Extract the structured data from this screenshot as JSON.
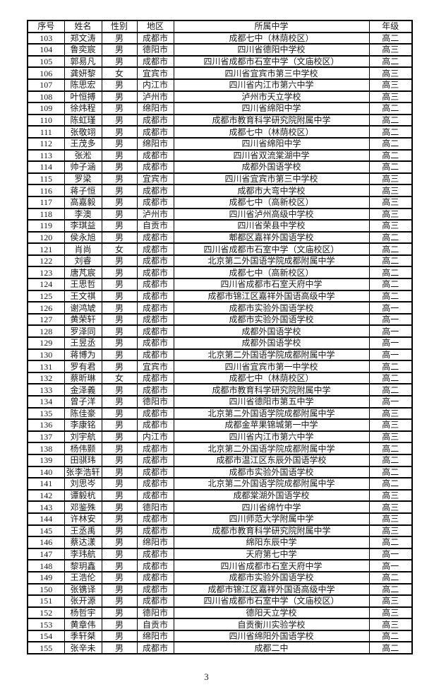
{
  "page": {
    "footer_page_number": "3"
  },
  "table": {
    "headers": [
      "序号",
      "姓名",
      "性别",
      "地区",
      "所属中学",
      "年级"
    ],
    "rows": [
      [
        "103",
        "郑文涛",
        "男",
        "成都市",
        "成都七中（林荫校区）",
        "高二"
      ],
      [
        "104",
        "鲁奕宸",
        "男",
        "德阳市",
        "四川省德阳中学校",
        "高三"
      ],
      [
        "105",
        "郭易凡",
        "男",
        "成都市",
        "四川省成都市石室中学（文庙校区）",
        "高二"
      ],
      [
        "106",
        "龚妍黎",
        "女",
        "宜宾市",
        "四川省宜宾市第三中学校",
        "高三"
      ],
      [
        "107",
        "陈思宏",
        "男",
        "内江市",
        "四川省内江市第六中学",
        "高三"
      ],
      [
        "108",
        "叶恒搏",
        "男",
        "泸州市",
        "泸州市天立学校",
        "高三"
      ],
      [
        "109",
        "徐炜程",
        "男",
        "绵阳市",
        "四川省绵阳中学",
        "高二"
      ],
      [
        "110",
        "陈虹瑾",
        "男",
        "成都市",
        "成都市教育科学研究院附属中学",
        "高二"
      ],
      [
        "111",
        "张敬翊",
        "男",
        "成都市",
        "成都七中（林荫校区）",
        "高二"
      ],
      [
        "112",
        "王茂多",
        "男",
        "绵阳市",
        "四川省绵阳中学",
        "高二"
      ],
      [
        "113",
        "张淞",
        "男",
        "成都市",
        "四川省双流棠湖中学",
        "高二"
      ],
      [
        "114",
        "帅子涵",
        "男",
        "成都市",
        "成都外国语学校",
        "高二"
      ],
      [
        "115",
        "罗梁",
        "男",
        "宜宾市",
        "四川省宜宾市第三中学校",
        "高三"
      ],
      [
        "116",
        "蒋子恒",
        "男",
        "成都市",
        "成都市大弯中学校",
        "高三"
      ],
      [
        "117",
        "高嘉毅",
        "男",
        "成都市",
        "成都七中（高新校区）",
        "高三"
      ],
      [
        "118",
        "李澳",
        "男",
        "泸州市",
        "四川省泸州高级中学校",
        "高三"
      ],
      [
        "119",
        "李琪益",
        "男",
        "自贡市",
        "四川省荣县中学校",
        "高三"
      ],
      [
        "120",
        "侯永旭",
        "男",
        "成都市",
        "郫都区嘉祥外国语学校",
        "高二"
      ],
      [
        "121",
        "肖尚",
        "女",
        "成都市",
        "四川省成都市石室中学（文庙校区）",
        "高二"
      ],
      [
        "122",
        "刘睿",
        "男",
        "成都市",
        "北京第二外国语学院成都附属中学",
        "高二"
      ],
      [
        "123",
        "唐芃宸",
        "男",
        "成都市",
        "成都七中（高新校区）",
        "高二"
      ],
      [
        "124",
        "王思哲",
        "男",
        "成都市",
        "四川省成都市石室天府中学",
        "高二"
      ],
      [
        "125",
        "王文祺",
        "男",
        "成都市",
        "成都市锦江区嘉祥外国语高级中学",
        "高二"
      ],
      [
        "126",
        "谢鸿虓",
        "男",
        "成都市",
        "成都市实验外国语学校",
        "高一"
      ],
      [
        "127",
        "黄荣轩",
        "男",
        "成都市",
        "成都市实验外国语学校",
        "高一"
      ],
      [
        "128",
        "罗泽同",
        "男",
        "成都市",
        "成都外国语学校",
        "高一"
      ],
      [
        "129",
        "王昱丞",
        "男",
        "成都市",
        "成都外国语学校",
        "高一"
      ],
      [
        "130",
        "蒋博为",
        "男",
        "成都市",
        "北京第二外国语学院成都附属中学",
        "高一"
      ],
      [
        "131",
        "罗有君",
        "男",
        "宜宾市",
        "四川省宜宾市第一中学校",
        "高二"
      ],
      [
        "132",
        "蔡昕琳",
        "女",
        "成都市",
        "成都七中（林荫校区）",
        "高二"
      ],
      [
        "133",
        "金泽義",
        "男",
        "成都市",
        "成都市教育科学研究院附属中学",
        "高二"
      ],
      [
        "134",
        "曾子洋",
        "男",
        "德阳市",
        "四川省德阳市第五中学",
        "高一"
      ],
      [
        "135",
        "陈佳豪",
        "男",
        "成都市",
        "北京第二外国语学院成都附属中学",
        "高三"
      ],
      [
        "136",
        "李康铭",
        "男",
        "成都市",
        "成都金苹果锦城第一中学",
        "高三"
      ],
      [
        "137",
        "刘宇航",
        "男",
        "内江市",
        "四川省内江市第六中学",
        "高三"
      ],
      [
        "138",
        "杨伟颢",
        "男",
        "成都市",
        "北京第二外国语学院成都附属中学",
        "高二"
      ],
      [
        "139",
        "田骐玮",
        "男",
        "成都市",
        "成都市温江区东辰外国语学校",
        "高二"
      ],
      [
        "140",
        "张李浩轩",
        "男",
        "成都市",
        "成都市实验外国语学校",
        "高二"
      ],
      [
        "141",
        "刘思岑",
        "男",
        "成都市",
        "北京第二外国语学院成都附属中学",
        "高二"
      ],
      [
        "142",
        "谭毅杭",
        "男",
        "成都市",
        "成都棠湖外国语学校",
        "高三"
      ],
      [
        "143",
        "邓鉴殊",
        "男",
        "德阳市",
        "四川省绵竹中学",
        "高三"
      ],
      [
        "144",
        "许林安",
        "男",
        "成都市",
        "四川师范大学附属中学",
        "高三"
      ],
      [
        "145",
        "王丞禹",
        "男",
        "成都市",
        "成都市教育科学研究院附属中学",
        "高三"
      ],
      [
        "146",
        "蔡达漾",
        "男",
        "绵阳市",
        "绵阳东辰中学",
        "高二"
      ],
      [
        "147",
        "李玮航",
        "男",
        "成都市",
        "天府第七中学",
        "高一"
      ],
      [
        "148",
        "黎玥鑫",
        "男",
        "成都市",
        "四川省成都市石室天府中学",
        "高一"
      ],
      [
        "149",
        "王浩伦",
        "男",
        "成都市",
        "成都市实验外国语学校",
        "高二"
      ],
      [
        "150",
        "张镌译",
        "男",
        "成都市",
        "成都市锦江区嘉祥外国语高级中学",
        "高二"
      ],
      [
        "151",
        "张开源",
        "男",
        "成都市",
        "四川省成都市石室中学（文庙校区）",
        "高三"
      ],
      [
        "152",
        "杨哲宇",
        "男",
        "德阳市",
        "德阳天立学校",
        "高三"
      ],
      [
        "153",
        "黄章伟",
        "男",
        "自贡市",
        "自贡衡川实验学校",
        "高三"
      ],
      [
        "154",
        "季轩桀",
        "男",
        "绵阳市",
        "四川省绵阳外国语学校",
        "高二"
      ],
      [
        "155",
        "张辛未",
        "男",
        "成都市",
        "成都二中",
        "高二"
      ]
    ]
  }
}
